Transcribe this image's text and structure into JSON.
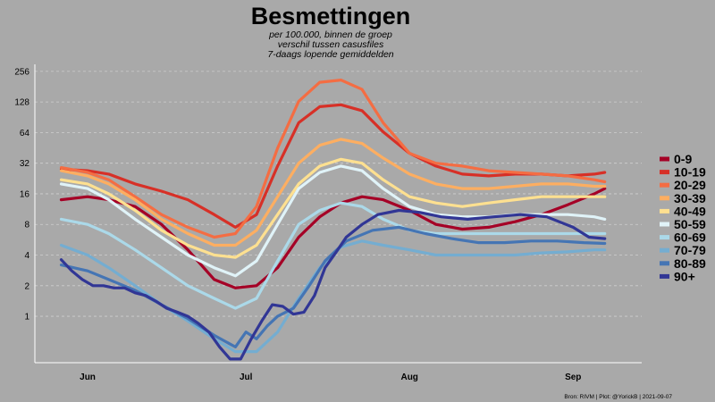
{
  "chart_data": {
    "type": "line",
    "title": "Besmettingen",
    "subtitle": [
      "per 100.000, binnen de groep",
      "verschil tussen casusfiles",
      "7-daags lopende gemiddelden"
    ],
    "caption": "Bron: RIVM | Plot: @YorickB  |  2021-09-07",
    "y_scale": "log2",
    "ylim": [
      0.35,
      300
    ],
    "y_ticks": [
      1,
      2,
      4,
      8,
      16,
      32,
      64,
      128,
      256
    ],
    "y_tick_labels": [
      "1",
      "2",
      "4",
      "8",
      "16",
      "32",
      "64",
      "128",
      "256"
    ],
    "xlim": [
      "2021-05-22",
      "2021-09-14"
    ],
    "x_ticks": [
      "2021-06-01",
      "2021-07-01",
      "2021-08-01",
      "2021-09-01"
    ],
    "x_tick_labels": [
      "Jun",
      "Jul",
      "Aug",
      "Sep"
    ],
    "grid": true,
    "legend_position": "right",
    "series": [
      {
        "name": "0-9",
        "color": "#a50026",
        "points": [
          [
            "2021-05-27",
            14
          ],
          [
            "2021-06-01",
            15
          ],
          [
            "2021-06-05",
            14
          ],
          [
            "2021-06-10",
            12
          ],
          [
            "2021-06-15",
            8
          ],
          [
            "2021-06-20",
            4.5
          ],
          [
            "2021-06-25",
            2.3
          ],
          [
            "2021-06-29",
            1.9
          ],
          [
            "2021-07-03",
            2
          ],
          [
            "2021-07-07",
            3
          ],
          [
            "2021-07-11",
            6
          ],
          [
            "2021-07-15",
            9.5
          ],
          [
            "2021-07-19",
            13
          ],
          [
            "2021-07-23",
            15
          ],
          [
            "2021-07-27",
            14
          ],
          [
            "2021-08-01",
            11
          ],
          [
            "2021-08-06",
            8
          ],
          [
            "2021-08-11",
            7.2
          ],
          [
            "2021-08-16",
            7.5
          ],
          [
            "2021-08-21",
            8.5
          ],
          [
            "2021-08-26",
            10
          ],
          [
            "2021-08-31",
            12.5
          ],
          [
            "2021-09-05",
            16
          ],
          [
            "2021-09-07",
            18
          ]
        ]
      },
      {
        "name": "10-19",
        "color": "#d73027",
        "points": [
          [
            "2021-05-27",
            28
          ],
          [
            "2021-06-01",
            27
          ],
          [
            "2021-06-05",
            25
          ],
          [
            "2021-06-10",
            20
          ],
          [
            "2021-06-15",
            17
          ],
          [
            "2021-06-20",
            14
          ],
          [
            "2021-06-25",
            10
          ],
          [
            "2021-06-29",
            7.5
          ],
          [
            "2021-07-03",
            10
          ],
          [
            "2021-07-07",
            30
          ],
          [
            "2021-07-11",
            80
          ],
          [
            "2021-07-15",
            115
          ],
          [
            "2021-07-19",
            120
          ],
          [
            "2021-07-23",
            105
          ],
          [
            "2021-07-27",
            65
          ],
          [
            "2021-08-01",
            40
          ],
          [
            "2021-08-06",
            30
          ],
          [
            "2021-08-11",
            25
          ],
          [
            "2021-08-16",
            24
          ],
          [
            "2021-08-21",
            25
          ],
          [
            "2021-08-26",
            25
          ],
          [
            "2021-08-31",
            24
          ],
          [
            "2021-09-05",
            25
          ],
          [
            "2021-09-07",
            26
          ]
        ]
      },
      {
        "name": "20-29",
        "color": "#f46d43",
        "points": [
          [
            "2021-05-27",
            29
          ],
          [
            "2021-06-01",
            26
          ],
          [
            "2021-06-05",
            22
          ],
          [
            "2021-06-10",
            15
          ],
          [
            "2021-06-15",
            10
          ],
          [
            "2021-06-20",
            7.5
          ],
          [
            "2021-06-25",
            6
          ],
          [
            "2021-06-29",
            6.5
          ],
          [
            "2021-07-03",
            12
          ],
          [
            "2021-07-07",
            45
          ],
          [
            "2021-07-11",
            130
          ],
          [
            "2021-07-15",
            200
          ],
          [
            "2021-07-19",
            210
          ],
          [
            "2021-07-23",
            170
          ],
          [
            "2021-07-27",
            80
          ],
          [
            "2021-08-01",
            40
          ],
          [
            "2021-08-06",
            32
          ],
          [
            "2021-08-11",
            30
          ],
          [
            "2021-08-16",
            27
          ],
          [
            "2021-08-21",
            26
          ],
          [
            "2021-08-26",
            25
          ],
          [
            "2021-08-31",
            24
          ],
          [
            "2021-09-05",
            22
          ],
          [
            "2021-09-07",
            21
          ]
        ]
      },
      {
        "name": "30-39",
        "color": "#fdae61",
        "points": [
          [
            "2021-05-27",
            27
          ],
          [
            "2021-06-01",
            24
          ],
          [
            "2021-06-05",
            20
          ],
          [
            "2021-06-10",
            14
          ],
          [
            "2021-06-15",
            9
          ],
          [
            "2021-06-20",
            6.5
          ],
          [
            "2021-06-25",
            5
          ],
          [
            "2021-06-29",
            5
          ],
          [
            "2021-07-03",
            7
          ],
          [
            "2021-07-07",
            15
          ],
          [
            "2021-07-11",
            32
          ],
          [
            "2021-07-15",
            48
          ],
          [
            "2021-07-19",
            55
          ],
          [
            "2021-07-23",
            50
          ],
          [
            "2021-07-27",
            36
          ],
          [
            "2021-08-01",
            25
          ],
          [
            "2021-08-06",
            20
          ],
          [
            "2021-08-11",
            18
          ],
          [
            "2021-08-16",
            18
          ],
          [
            "2021-08-21",
            19
          ],
          [
            "2021-08-26",
            20
          ],
          [
            "2021-08-31",
            20
          ],
          [
            "2021-09-05",
            19
          ],
          [
            "2021-09-07",
            19
          ]
        ]
      },
      {
        "name": "40-49",
        "color": "#fee090",
        "points": [
          [
            "2021-05-27",
            22
          ],
          [
            "2021-06-01",
            20
          ],
          [
            "2021-06-05",
            16
          ],
          [
            "2021-06-10",
            11
          ],
          [
            "2021-06-15",
            7
          ],
          [
            "2021-06-20",
            5
          ],
          [
            "2021-06-25",
            4
          ],
          [
            "2021-06-29",
            3.8
          ],
          [
            "2021-07-03",
            5
          ],
          [
            "2021-07-07",
            10
          ],
          [
            "2021-07-11",
            20
          ],
          [
            "2021-07-15",
            30
          ],
          [
            "2021-07-19",
            35
          ],
          [
            "2021-07-23",
            32
          ],
          [
            "2021-07-27",
            22
          ],
          [
            "2021-08-01",
            15
          ],
          [
            "2021-08-06",
            13
          ],
          [
            "2021-08-11",
            12
          ],
          [
            "2021-08-16",
            13
          ],
          [
            "2021-08-21",
            14
          ],
          [
            "2021-08-26",
            15
          ],
          [
            "2021-08-31",
            15
          ],
          [
            "2021-09-05",
            15
          ],
          [
            "2021-09-07",
            15
          ]
        ]
      },
      {
        "name": "50-59",
        "color": "#e0f3f8",
        "points": [
          [
            "2021-05-27",
            20
          ],
          [
            "2021-06-01",
            18
          ],
          [
            "2021-06-05",
            14
          ],
          [
            "2021-06-10",
            9
          ],
          [
            "2021-06-15",
            6
          ],
          [
            "2021-06-20",
            4
          ],
          [
            "2021-06-25",
            3
          ],
          [
            "2021-06-29",
            2.5
          ],
          [
            "2021-07-03",
            3.5
          ],
          [
            "2021-07-07",
            8
          ],
          [
            "2021-07-11",
            18
          ],
          [
            "2021-07-15",
            26
          ],
          [
            "2021-07-19",
            30
          ],
          [
            "2021-07-23",
            27
          ],
          [
            "2021-07-27",
            18
          ],
          [
            "2021-08-01",
            12
          ],
          [
            "2021-08-06",
            10
          ],
          [
            "2021-08-11",
            9.5
          ],
          [
            "2021-08-16",
            9.5
          ],
          [
            "2021-08-21",
            10
          ],
          [
            "2021-08-26",
            10
          ],
          [
            "2021-08-31",
            10
          ],
          [
            "2021-09-05",
            9.5
          ],
          [
            "2021-09-07",
            9
          ]
        ]
      },
      {
        "name": "60-69",
        "color": "#abd9e9",
        "points": [
          [
            "2021-05-27",
            9
          ],
          [
            "2021-06-01",
            8
          ],
          [
            "2021-06-05",
            6.5
          ],
          [
            "2021-06-10",
            4.5
          ],
          [
            "2021-06-15",
            3
          ],
          [
            "2021-06-20",
            2
          ],
          [
            "2021-06-25",
            1.5
          ],
          [
            "2021-06-29",
            1.2
          ],
          [
            "2021-07-03",
            1.5
          ],
          [
            "2021-07-07",
            3.5
          ],
          [
            "2021-07-11",
            8
          ],
          [
            "2021-07-15",
            11
          ],
          [
            "2021-07-19",
            13
          ],
          [
            "2021-07-23",
            12
          ],
          [
            "2021-07-27",
            9
          ],
          [
            "2021-08-01",
            7
          ],
          [
            "2021-08-06",
            6.5
          ],
          [
            "2021-08-11",
            6.5
          ],
          [
            "2021-08-16",
            6.5
          ],
          [
            "2021-08-21",
            6.5
          ],
          [
            "2021-08-26",
            6.5
          ],
          [
            "2021-08-31",
            6.5
          ],
          [
            "2021-09-05",
            6.5
          ],
          [
            "2021-09-07",
            6.5
          ]
        ]
      },
      {
        "name": "70-79",
        "color": "#74add1",
        "points": [
          [
            "2021-05-27",
            5
          ],
          [
            "2021-06-01",
            4
          ],
          [
            "2021-06-05",
            3
          ],
          [
            "2021-06-10",
            2
          ],
          [
            "2021-06-15",
            1.3
          ],
          [
            "2021-06-20",
            0.9
          ],
          [
            "2021-06-25",
            0.6
          ],
          [
            "2021-06-29",
            0.45
          ],
          [
            "2021-07-03",
            0.45
          ],
          [
            "2021-07-07",
            0.7
          ],
          [
            "2021-07-11",
            1.5
          ],
          [
            "2021-07-15",
            3
          ],
          [
            "2021-07-19",
            4.8
          ],
          [
            "2021-07-23",
            5.5
          ],
          [
            "2021-07-27",
            5
          ],
          [
            "2021-08-01",
            4.5
          ],
          [
            "2021-08-06",
            4
          ],
          [
            "2021-08-11",
            4
          ],
          [
            "2021-08-16",
            4
          ],
          [
            "2021-08-21",
            4
          ],
          [
            "2021-08-26",
            4.2
          ],
          [
            "2021-08-31",
            4.3
          ],
          [
            "2021-09-05",
            4.5
          ],
          [
            "2021-09-07",
            4.5
          ]
        ]
      },
      {
        "name": "80-89",
        "color": "#4575b4",
        "points": [
          [
            "2021-05-27",
            3.2
          ],
          [
            "2021-06-01",
            2.8
          ],
          [
            "2021-06-05",
            2.3
          ],
          [
            "2021-06-10",
            1.8
          ],
          [
            "2021-06-15",
            1.3
          ],
          [
            "2021-06-20",
            0.95
          ],
          [
            "2021-06-25",
            0.65
          ],
          [
            "2021-06-29",
            0.5
          ],
          [
            "2021-07-01",
            0.7
          ],
          [
            "2021-07-03",
            0.6
          ],
          [
            "2021-07-05",
            0.8
          ],
          [
            "2021-07-07",
            1
          ],
          [
            "2021-07-10",
            1.2
          ],
          [
            "2021-07-13",
            2
          ],
          [
            "2021-07-16",
            3.5
          ],
          [
            "2021-07-20",
            5.5
          ],
          [
            "2021-07-25",
            7
          ],
          [
            "2021-07-30",
            7.5
          ],
          [
            "2021-08-04",
            6.5
          ],
          [
            "2021-08-09",
            5.8
          ],
          [
            "2021-08-14",
            5.3
          ],
          [
            "2021-08-19",
            5.3
          ],
          [
            "2021-08-24",
            5.5
          ],
          [
            "2021-08-29",
            5.5
          ],
          [
            "2021-09-03",
            5.3
          ],
          [
            "2021-09-07",
            5.2
          ]
        ]
      },
      {
        "name": "90+",
        "color": "#313695",
        "points": [
          [
            "2021-05-27",
            3.6
          ],
          [
            "2021-05-29",
            2.8
          ],
          [
            "2021-05-31",
            2.3
          ],
          [
            "2021-06-02",
            2
          ],
          [
            "2021-06-04",
            2
          ],
          [
            "2021-06-06",
            1.9
          ],
          [
            "2021-06-08",
            1.9
          ],
          [
            "2021-06-10",
            1.7
          ],
          [
            "2021-06-12",
            1.6
          ],
          [
            "2021-06-14",
            1.4
          ],
          [
            "2021-06-16",
            1.2
          ],
          [
            "2021-06-18",
            1.1
          ],
          [
            "2021-06-20",
            1
          ],
          [
            "2021-06-22",
            0.85
          ],
          [
            "2021-06-24",
            0.7
          ],
          [
            "2021-06-26",
            0.5
          ],
          [
            "2021-06-28",
            0.38
          ],
          [
            "2021-06-30",
            0.38
          ],
          [
            "2021-07-02",
            0.6
          ],
          [
            "2021-07-04",
            0.9
          ],
          [
            "2021-07-06",
            1.3
          ],
          [
            "2021-07-08",
            1.25
          ],
          [
            "2021-07-10",
            1.05
          ],
          [
            "2021-07-12",
            1.1
          ],
          [
            "2021-07-14",
            1.6
          ],
          [
            "2021-07-16",
            3
          ],
          [
            "2021-07-18",
            4.2
          ],
          [
            "2021-07-20",
            6
          ],
          [
            "2021-07-23",
            8
          ],
          [
            "2021-07-26",
            10
          ],
          [
            "2021-07-30",
            11
          ],
          [
            "2021-08-03",
            10.5
          ],
          [
            "2021-08-07",
            9.5
          ],
          [
            "2021-08-12",
            9
          ],
          [
            "2021-08-17",
            9.5
          ],
          [
            "2021-08-22",
            10
          ],
          [
            "2021-08-27",
            9.5
          ],
          [
            "2021-09-01",
            7.5
          ],
          [
            "2021-09-04",
            6
          ],
          [
            "2021-09-07",
            5.8
          ]
        ]
      }
    ]
  }
}
